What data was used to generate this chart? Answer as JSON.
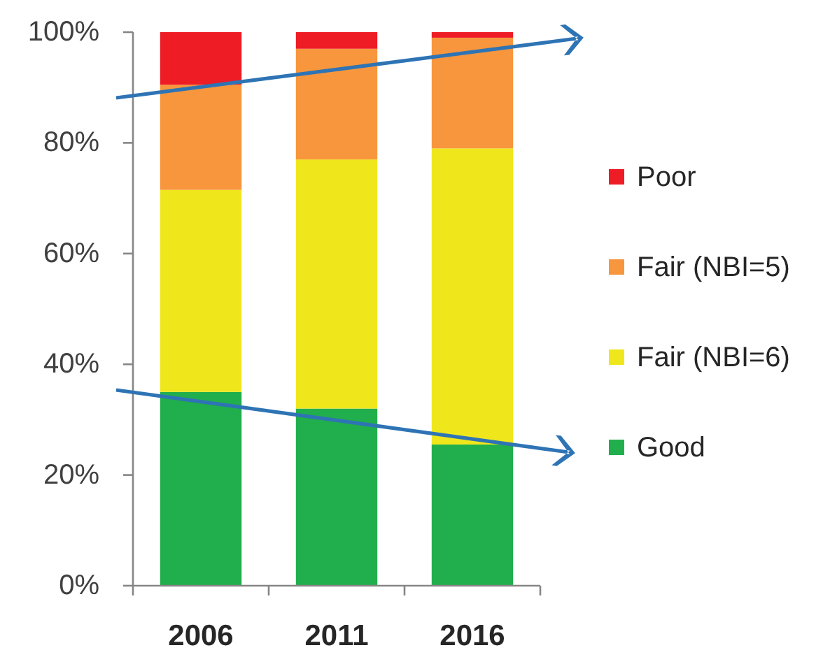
{
  "chart_data": {
    "type": "bar",
    "stacked": true,
    "categories": [
      "2006",
      "2011",
      "2016"
    ],
    "series": [
      {
        "name": "Good",
        "color": "#21ae4c",
        "values": [
          35,
          32,
          25.5
        ]
      },
      {
        "name": "Fair (NBI=6)",
        "color": "#efe71c",
        "values": [
          36.5,
          45,
          53.5
        ]
      },
      {
        "name": "Fair (NBI=5)",
        "color": "#f7963c",
        "values": [
          19,
          20,
          20
        ]
      },
      {
        "name": "Poor",
        "color": "#ee1c25",
        "values": [
          9.5,
          3,
          1
        ]
      }
    ],
    "ylim": [
      0,
      100
    ],
    "yticks": [
      {
        "value": 0,
        "label": "0%"
      },
      {
        "value": 20,
        "label": "20%"
      },
      {
        "value": 40,
        "label": "40%"
      },
      {
        "value": 60,
        "label": "60%"
      },
      {
        "value": 80,
        "label": "80%"
      },
      {
        "value": 100,
        "label": "100%"
      }
    ],
    "legend": "right"
  }
}
